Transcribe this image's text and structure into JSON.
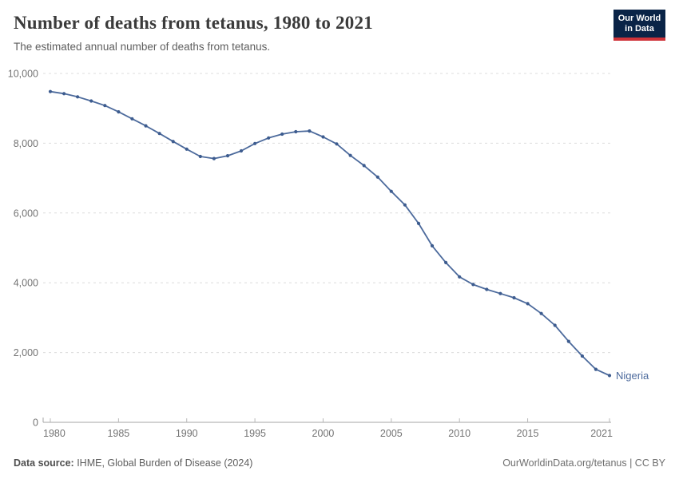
{
  "header": {
    "title": "Number of deaths from tetanus, 1980 to 2021",
    "subtitle": "The estimated annual number of deaths from tetanus."
  },
  "logo": {
    "line1": "Our World",
    "line2": "in Data",
    "bg_color": "#0a2447",
    "bar_color": "#cf3339"
  },
  "footer": {
    "source_label": "Data source:",
    "source_text": " IHME, Global Burden of Disease (2024)",
    "rights": "OurWorldinData.org/tetanus | CC BY"
  },
  "chart_data": {
    "type": "line",
    "title": "Number of deaths from tetanus, 1980 to 2021",
    "xlabel": "",
    "ylabel": "",
    "xlim": [
      1980,
      2021
    ],
    "ylim": [
      0,
      10000
    ],
    "grid": "horizontal-dashed",
    "legend_position": "end-of-line-label",
    "entity_label": "Nigeria",
    "line_color": "#4c6a9c",
    "dot_color": "#3d5c8f",
    "xticks": [
      1980,
      1985,
      1990,
      1995,
      2000,
      2005,
      2010,
      2015,
      2021
    ],
    "yticks": [
      0,
      2000,
      4000,
      6000,
      8000,
      10000
    ],
    "ytick_labels": [
      "0",
      "2,000",
      "4,000",
      "6,000",
      "8,000",
      "10,000"
    ],
    "series": [
      {
        "name": "Nigeria",
        "x": [
          1980,
          1981,
          1982,
          1983,
          1984,
          1985,
          1986,
          1987,
          1988,
          1989,
          1990,
          1991,
          1992,
          1993,
          1994,
          1995,
          1996,
          1997,
          1998,
          1999,
          2000,
          2001,
          2002,
          2003,
          2004,
          2005,
          2006,
          2007,
          2008,
          2009,
          2010,
          2011,
          2012,
          2013,
          2014,
          2015,
          2016,
          2017,
          2018,
          2019,
          2020,
          2021
        ],
        "values": [
          9480,
          9420,
          9330,
          9210,
          9080,
          8900,
          8700,
          8500,
          8280,
          8050,
          7830,
          7620,
          7560,
          7640,
          7780,
          7990,
          8150,
          8260,
          8330,
          8350,
          8180,
          7980,
          7650,
          7360,
          7030,
          6620,
          6230,
          5700,
          5060,
          4580,
          4170,
          3950,
          3810,
          3690,
          3570,
          3400,
          3120,
          2780,
          2320,
          1900,
          1520,
          1340
        ]
      }
    ]
  }
}
